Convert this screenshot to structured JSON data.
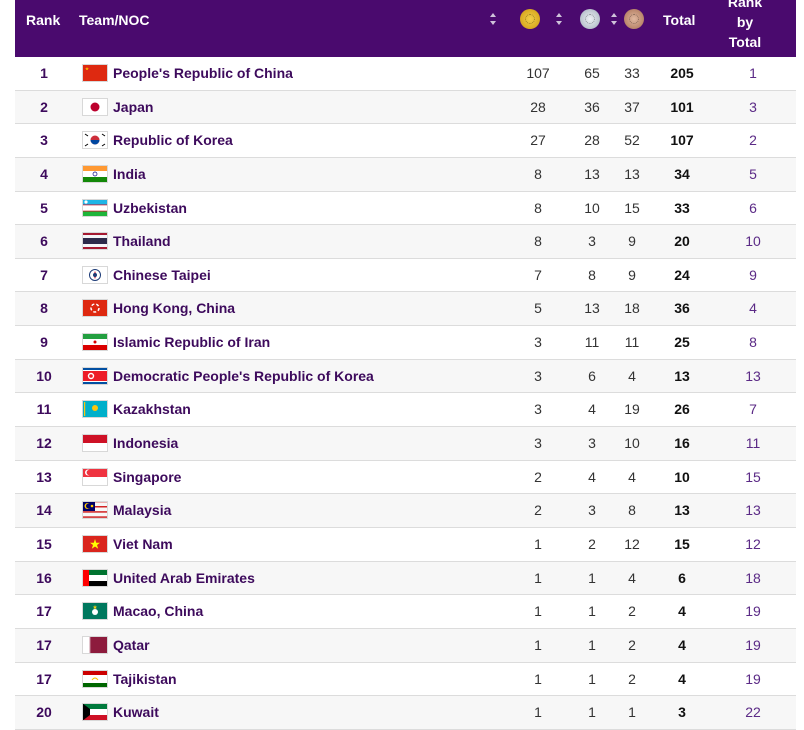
{
  "headers": {
    "rank": "Rank",
    "team": "Team/NOC",
    "total": "Total",
    "rank_by_total": [
      "Rank",
      "by",
      "Total"
    ]
  },
  "medal_icons": [
    "gold-medal-icon",
    "silver-medal-icon",
    "bronze-medal-icon"
  ],
  "colors": {
    "header_bg": "#4a0a6e",
    "rank_text": "#3d0a5c",
    "rank_by_total_text": "#5b2a86"
  },
  "rows": [
    {
      "rank": "1",
      "team": "People's Republic of China",
      "flag": "china-flag-icon",
      "gold": "107",
      "silver": "65",
      "bronze": "33",
      "total": "205",
      "rank_by_total": "1"
    },
    {
      "rank": "2",
      "team": "Japan",
      "flag": "japan-flag-icon",
      "gold": "28",
      "silver": "36",
      "bronze": "37",
      "total": "101",
      "rank_by_total": "3"
    },
    {
      "rank": "3",
      "team": "Republic of Korea",
      "flag": "korea-flag-icon",
      "gold": "27",
      "silver": "28",
      "bronze": "52",
      "total": "107",
      "rank_by_total": "2"
    },
    {
      "rank": "4",
      "team": "India",
      "flag": "india-flag-icon",
      "gold": "8",
      "silver": "13",
      "bronze": "13",
      "total": "34",
      "rank_by_total": "5"
    },
    {
      "rank": "5",
      "team": "Uzbekistan",
      "flag": "uzbekistan-flag-icon",
      "gold": "8",
      "silver": "10",
      "bronze": "15",
      "total": "33",
      "rank_by_total": "6"
    },
    {
      "rank": "6",
      "team": "Thailand",
      "flag": "thailand-flag-icon",
      "gold": "8",
      "silver": "3",
      "bronze": "9",
      "total": "20",
      "rank_by_total": "10"
    },
    {
      "rank": "7",
      "team": "Chinese Taipei",
      "flag": "chinese-taipei-flag-icon",
      "gold": "7",
      "silver": "8",
      "bronze": "9",
      "total": "24",
      "rank_by_total": "9"
    },
    {
      "rank": "8",
      "team": "Hong Kong, China",
      "flag": "hong-kong-flag-icon",
      "gold": "5",
      "silver": "13",
      "bronze": "18",
      "total": "36",
      "rank_by_total": "4"
    },
    {
      "rank": "9",
      "team": "Islamic Republic of Iran",
      "flag": "iran-flag-icon",
      "gold": "3",
      "silver": "11",
      "bronze": "11",
      "total": "25",
      "rank_by_total": "8"
    },
    {
      "rank": "10",
      "team": "Democratic People's Republic of Korea",
      "flag": "dpr-korea-flag-icon",
      "gold": "3",
      "silver": "6",
      "bronze": "4",
      "total": "13",
      "rank_by_total": "13"
    },
    {
      "rank": "11",
      "team": "Kazakhstan",
      "flag": "kazakhstan-flag-icon",
      "gold": "3",
      "silver": "4",
      "bronze": "19",
      "total": "26",
      "rank_by_total": "7"
    },
    {
      "rank": "12",
      "team": "Indonesia",
      "flag": "indonesia-flag-icon",
      "gold": "3",
      "silver": "3",
      "bronze": "10",
      "total": "16",
      "rank_by_total": "11"
    },
    {
      "rank": "13",
      "team": "Singapore",
      "flag": "singapore-flag-icon",
      "gold": "2",
      "silver": "4",
      "bronze": "4",
      "total": "10",
      "rank_by_total": "15"
    },
    {
      "rank": "14",
      "team": "Malaysia",
      "flag": "malaysia-flag-icon",
      "gold": "2",
      "silver": "3",
      "bronze": "8",
      "total": "13",
      "rank_by_total": "13"
    },
    {
      "rank": "15",
      "team": "Viet Nam",
      "flag": "viet-nam-flag-icon",
      "gold": "1",
      "silver": "2",
      "bronze": "12",
      "total": "15",
      "rank_by_total": "12"
    },
    {
      "rank": "16",
      "team": "United Arab Emirates",
      "flag": "uae-flag-icon",
      "gold": "1",
      "silver": "1",
      "bronze": "4",
      "total": "6",
      "rank_by_total": "18"
    },
    {
      "rank": "17",
      "team": "Macao, China",
      "flag": "macao-flag-icon",
      "gold": "1",
      "silver": "1",
      "bronze": "2",
      "total": "4",
      "rank_by_total": "19"
    },
    {
      "rank": "17",
      "team": "Qatar",
      "flag": "qatar-flag-icon",
      "gold": "1",
      "silver": "1",
      "bronze": "2",
      "total": "4",
      "rank_by_total": "19"
    },
    {
      "rank": "17",
      "team": "Tajikistan",
      "flag": "tajikistan-flag-icon",
      "gold": "1",
      "silver": "1",
      "bronze": "2",
      "total": "4",
      "rank_by_total": "19"
    },
    {
      "rank": "20",
      "team": "Kuwait",
      "flag": "kuwait-flag-icon",
      "gold": "1",
      "silver": "1",
      "bronze": "1",
      "total": "3",
      "rank_by_total": "22"
    }
  ]
}
